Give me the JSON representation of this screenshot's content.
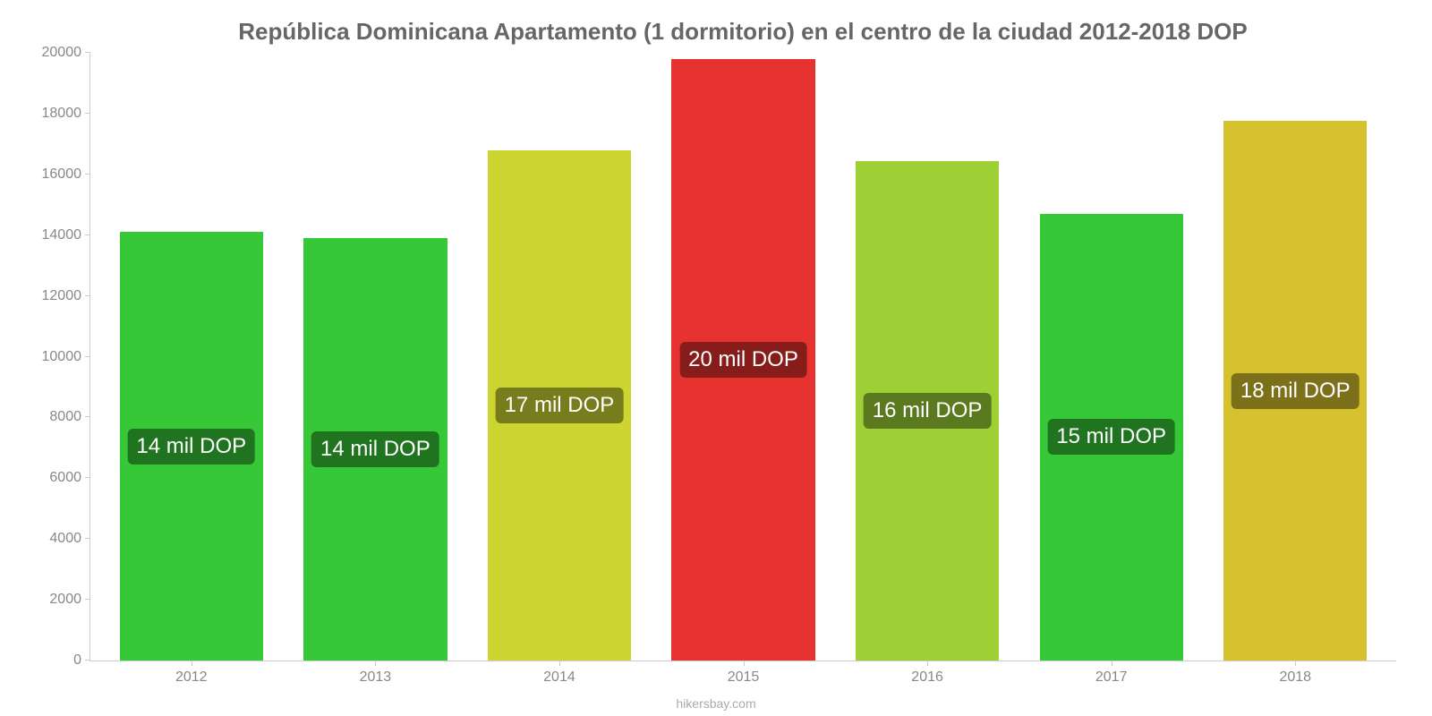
{
  "chart": {
    "type": "bar",
    "title": "República Dominicana Apartamento (1 dormitorio) en el centro de la ciudad 2012-2018 DOP",
    "title_fontsize": 26,
    "title_color": "#666666",
    "background_color": "#ffffff",
    "axis_color": "#cccccc",
    "tick_label_color": "#888888",
    "tick_fontsize": 16,
    "ylim": [
      0,
      20000
    ],
    "ytick_step": 2000,
    "yticks": [
      0,
      2000,
      4000,
      6000,
      8000,
      10000,
      12000,
      14000,
      16000,
      18000,
      20000
    ],
    "categories": [
      "2012",
      "2013",
      "2014",
      "2015",
      "2016",
      "2017",
      "2018"
    ],
    "values": [
      14100,
      13900,
      16800,
      19800,
      16450,
      14700,
      17750
    ],
    "bar_colors": [
      "#37c837",
      "#37c837",
      "#cdd631",
      "#e73330",
      "#9ed035",
      "#37c837",
      "#d6c22f"
    ],
    "labels": [
      "14 mil DOP",
      "14 mil DOP",
      "17 mil DOP",
      "20 mil DOP",
      "16 mil DOP",
      "15 mil DOP",
      "18 mil DOP"
    ],
    "bar_label_fontsize": 24,
    "bar_label_color": "#ffffff",
    "bar_label_bg": "rgba(0,0,0,0.42)",
    "bar_width_pct": 78,
    "credit": "hikersbay.com",
    "credit_color": "#aaaaaa",
    "credit_fontsize": 14
  }
}
